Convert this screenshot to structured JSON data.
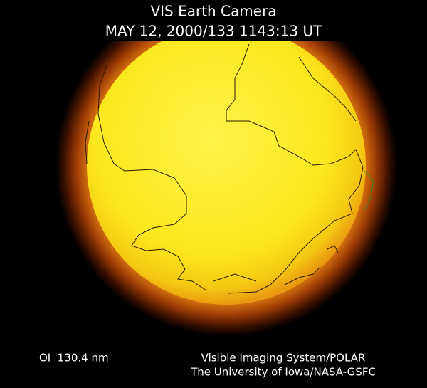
{
  "header": {
    "title": "VIS Earth Camera",
    "timestamp": "MAY 12, 2000/133 1143:13 UT"
  },
  "footer": {
    "wavelength": "OI  130.4 nm",
    "instrument": "Visible Imaging System/POLAR",
    "credit": "The University of Iowa/NASA-GSFC"
  }
}
